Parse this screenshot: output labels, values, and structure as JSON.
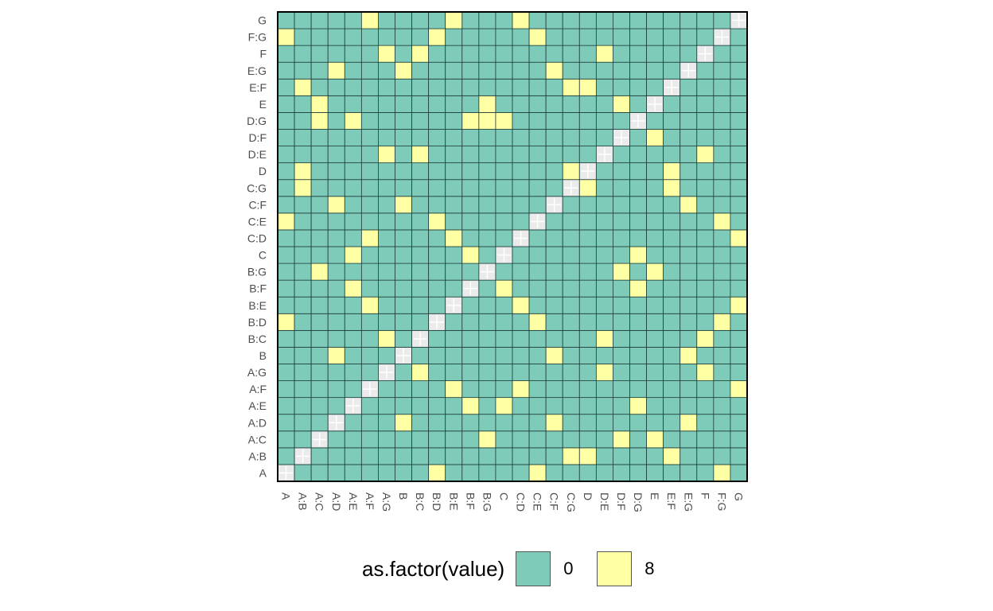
{
  "chart_data": {
    "type": "heatmap",
    "title": "",
    "xlabel": "",
    "ylabel": "",
    "categories": [
      "A",
      "A:B",
      "A:C",
      "A:D",
      "A:E",
      "A:F",
      "A:G",
      "B",
      "B:C",
      "B:D",
      "B:E",
      "B:F",
      "B:G",
      "C",
      "C:D",
      "C:E",
      "C:F",
      "C:G",
      "D",
      "D:E",
      "D:F",
      "D:G",
      "E",
      "E:F",
      "E:G",
      "F",
      "F:G",
      "G"
    ],
    "x": [
      "A",
      "A:B",
      "A:C",
      "A:D",
      "A:E",
      "A:F",
      "A:G",
      "B",
      "B:C",
      "B:D",
      "B:E",
      "B:F",
      "B:G",
      "C",
      "C:D",
      "C:E",
      "C:F",
      "C:G",
      "D",
      "D:E",
      "D:F",
      "D:G",
      "E",
      "E:F",
      "E:G",
      "F",
      "F:G",
      "G"
    ],
    "y": [
      "A",
      "A:B",
      "A:C",
      "A:D",
      "A:E",
      "A:F",
      "A:G",
      "B",
      "B:C",
      "B:D",
      "B:E",
      "B:F",
      "B:G",
      "C",
      "C:D",
      "C:E",
      "C:F",
      "C:G",
      "D",
      "D:E",
      "D:F",
      "D:G",
      "E",
      "E:F",
      "E:G",
      "F",
      "F:G",
      "G"
    ],
    "diagonal": "NA",
    "value_8_cells": [
      [
        "A",
        "B:D"
      ],
      [
        "A",
        "C:E"
      ],
      [
        "A",
        "F:G"
      ],
      [
        "A:B",
        "C:G"
      ],
      [
        "A:B",
        "D"
      ],
      [
        "A:B",
        "E:F"
      ],
      [
        "A:C",
        "B:G"
      ],
      [
        "A:C",
        "D:G"
      ],
      [
        "A:C",
        "E"
      ],
      [
        "A:D",
        "B"
      ],
      [
        "A:D",
        "C:F"
      ],
      [
        "A:D",
        "E:G"
      ],
      [
        "A:E",
        "B:F"
      ],
      [
        "A:E",
        "C"
      ],
      [
        "A:E",
        "D:G"
      ],
      [
        "A:F",
        "B:E"
      ],
      [
        "A:F",
        "C:D"
      ],
      [
        "A:F",
        "G"
      ],
      [
        "A:G",
        "B:C"
      ],
      [
        "A:G",
        "D:E"
      ],
      [
        "A:G",
        "F"
      ],
      [
        "B",
        "A:D"
      ],
      [
        "B",
        "C:F"
      ],
      [
        "B",
        "E:G"
      ],
      [
        "B:C",
        "A:G"
      ],
      [
        "B:C",
        "D:E"
      ],
      [
        "B:C",
        "F"
      ],
      [
        "B:D",
        "A"
      ],
      [
        "B:D",
        "C:E"
      ],
      [
        "B:D",
        "F:G"
      ],
      [
        "B:E",
        "A:F"
      ],
      [
        "B:E",
        "C:D"
      ],
      [
        "B:E",
        "G"
      ],
      [
        "B:F",
        "A:E"
      ],
      [
        "B:F",
        "C"
      ],
      [
        "B:F",
        "D:G"
      ],
      [
        "B:G",
        "A:C"
      ],
      [
        "B:G",
        "D:G"
      ],
      [
        "B:G",
        "E"
      ],
      [
        "C",
        "A:E"
      ],
      [
        "C",
        "B:F"
      ],
      [
        "C",
        "D:G"
      ],
      [
        "C:D",
        "A:F"
      ],
      [
        "C:D",
        "B:E"
      ],
      [
        "C:D",
        "G"
      ],
      [
        "C:E",
        "A"
      ],
      [
        "C:E",
        "B:D"
      ],
      [
        "C:E",
        "F:G"
      ],
      [
        "C:F",
        "A:D"
      ],
      [
        "C:F",
        "B"
      ],
      [
        "C:F",
        "E:G"
      ],
      [
        "C:G",
        "A:B"
      ],
      [
        "C:G",
        "D"
      ],
      [
        "C:G",
        "E:F"
      ],
      [
        "D",
        "A:B"
      ],
      [
        "D",
        "C:G"
      ],
      [
        "D",
        "E:F"
      ],
      [
        "D:E",
        "A:G"
      ],
      [
        "D:E",
        "B:C"
      ],
      [
        "D:E",
        "F"
      ],
      [
        "D:F",
        "A:C"
      ],
      [
        "D:F",
        "B:G"
      ],
      [
        "D:F",
        "E"
      ],
      [
        "D:G",
        "A:E"
      ],
      [
        "D:G",
        "B:F"
      ],
      [
        "D:G",
        "C"
      ],
      [
        "E",
        "A:C"
      ],
      [
        "E",
        "B:G"
      ],
      [
        "E",
        "D:F"
      ],
      [
        "E:F",
        "A:B"
      ],
      [
        "E:F",
        "C:G"
      ],
      [
        "E:F",
        "D"
      ],
      [
        "E:G",
        "A:D"
      ],
      [
        "E:G",
        "B"
      ],
      [
        "E:G",
        "C:F"
      ],
      [
        "F",
        "A:G"
      ],
      [
        "F",
        "B:C"
      ],
      [
        "F",
        "D:E"
      ],
      [
        "F:G",
        "A"
      ],
      [
        "F:G",
        "B:D"
      ],
      [
        "F:G",
        "C:E"
      ],
      [
        "G",
        "A:F"
      ],
      [
        "G",
        "B:E"
      ],
      [
        "G",
        "C:D"
      ]
    ],
    "legend": {
      "title": "as.factor(value)",
      "placement": "bottom",
      "entries": [
        {
          "label": "0",
          "color": "#7ecbb9"
        },
        {
          "label": "8",
          "color": "#ffffa4"
        }
      ]
    },
    "na_color": "#ebebeb",
    "grid_line_color": "#1f3d3a"
  }
}
